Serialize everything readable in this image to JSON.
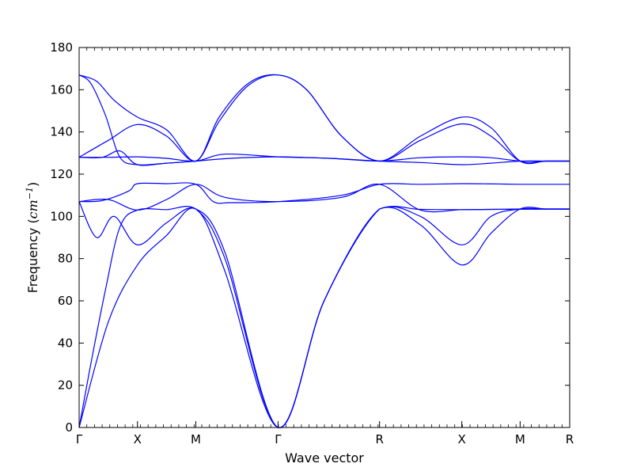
{
  "chart_data": {
    "type": "line",
    "title": "",
    "xlabel": "Wave vector",
    "ylabel": {
      "prefix": "Frequency (",
      "unit": "cm",
      "exponent": "−1",
      "suffix": ")"
    },
    "ylim": [
      0,
      180
    ],
    "yticks": [
      0,
      20,
      40,
      60,
      80,
      100,
      120,
      140,
      160,
      180
    ],
    "xlim": [
      0,
      8.41
    ],
    "grid": false,
    "legend": "none",
    "line_color": "#0000ff",
    "high_symmetry_points": [
      {
        "label": "Γ",
        "x": 0
      },
      {
        "label": "X",
        "x": 1
      },
      {
        "label": "M",
        "x": 2
      },
      {
        "label": "Γ",
        "x": 3.41
      },
      {
        "label": "R",
        "x": 5.15
      },
      {
        "label": "X",
        "x": 6.56
      },
      {
        "label": "M",
        "x": 7.56
      },
      {
        "label": "R",
        "x": 8.41
      }
    ],
    "series": [
      {
        "x": [
          0,
          0.5,
          1,
          1.5,
          2,
          2.5,
          3.41,
          4.2,
          5.15,
          5.85,
          6.56,
          7.06,
          7.56,
          8.0,
          8.41
        ],
        "y": [
          0,
          50,
          77,
          91,
          103.5,
          74,
          0,
          60,
          103.5,
          103.3,
          103.2,
          103.3,
          103.5,
          103.5,
          103.5
        ]
      },
      {
        "x": [
          0,
          0.2,
          0.45,
          0.7,
          1,
          1.5,
          2,
          2.5,
          3.41,
          4.2,
          5.15,
          5.85,
          6.56,
          7.06,
          7.56,
          8.0,
          8.41
        ],
        "y": [
          0,
          30,
          65,
          95,
          103,
          103.2,
          103.5,
          80,
          0,
          60,
          103.5,
          96,
          77,
          92,
          103.5,
          103.5,
          103.5
        ]
      },
      {
        "x": [
          0,
          0.3,
          0.6,
          1,
          1.5,
          2,
          2.5,
          3.41,
          4.2,
          5.15,
          5.85,
          6.56,
          7.06,
          7.56,
          8.0,
          8.41
        ],
        "y": [
          107,
          90,
          100,
          86.5,
          97,
          103.5,
          83,
          0,
          60,
          103.5,
          100,
          86.5,
          100,
          103.5,
          103.5,
          103.5
        ]
      },
      {
        "x": [
          0,
          0.4,
          0.85,
          1,
          1.5,
          2,
          2.3,
          2.6,
          3.41,
          4.5,
          5.15,
          5.85,
          6.56,
          7.06,
          7.56,
          8.0,
          8.41
        ],
        "y": [
          107,
          107.5,
          112,
          115.5,
          115.5,
          115.2,
          107,
          106.5,
          107,
          110,
          115.2,
          115.2,
          115.5,
          115.4,
          115.2,
          115.2,
          115.2
        ]
      },
      {
        "x": [
          0,
          0.5,
          1,
          1.5,
          2,
          2.5,
          3.41,
          4.5,
          5.15,
          5.85,
          6.56,
          7.06,
          7.56,
          8.0,
          8.41
        ],
        "y": [
          107,
          108,
          103,
          108,
          115.2,
          109,
          107,
          109,
          115.2,
          103,
          103.2,
          103.3,
          103.4,
          103.4,
          103.4
        ]
      },
      {
        "x": [
          0,
          0.4,
          0.7,
          1,
          1.5,
          2,
          2.6,
          3.41,
          4.3,
          5.15,
          5.85,
          6.56,
          7.06,
          7.56,
          8.0,
          8.41
        ],
        "y": [
          128,
          128,
          131,
          124.5,
          125.2,
          126.2,
          127.5,
          128.2,
          127.5,
          126.2,
          125.5,
          124.5,
          125.2,
          126.2,
          126.2,
          126.2
        ]
      },
      {
        "x": [
          0,
          0.5,
          1,
          1.5,
          2,
          2.5,
          3.41,
          4.3,
          5.15,
          5.85,
          6.56,
          7.06,
          7.56,
          8.0,
          8.41
        ],
        "y": [
          128,
          128,
          128.2,
          127.5,
          126.2,
          129.5,
          128.2,
          127.5,
          126.2,
          127.8,
          128.2,
          127.8,
          126.2,
          126.2,
          126.2
        ]
      },
      {
        "x": [
          0,
          0.5,
          1,
          1.5,
          2,
          2.4,
          2.9,
          3.41,
          3.9,
          4.5,
          5.15,
          5.85,
          6.56,
          7.06,
          7.56,
          8.0,
          8.41
        ],
        "y": [
          128,
          136,
          143.5,
          138,
          126.2,
          145,
          162,
          167,
          160,
          138,
          126.2,
          136,
          143.8,
          138,
          126.2,
          126.2,
          126.2
        ]
      },
      {
        "x": [
          0,
          0.3,
          0.6,
          1,
          1.5,
          2,
          2.4,
          2.9,
          3.41,
          3.9,
          4.5,
          5.15,
          5.85,
          6.56,
          7.06,
          7.56,
          8.0,
          8.41
        ],
        "y": [
          167,
          164,
          155,
          147,
          141,
          126.2,
          147,
          163,
          167,
          160,
          138,
          126.2,
          138,
          147,
          142,
          126.2,
          126.2,
          126.2
        ]
      },
      {
        "x": [
          0,
          0.2,
          0.45,
          0.7,
          1,
          1.4,
          2
        ],
        "y": [
          167,
          163,
          148,
          128,
          124.5,
          125,
          126.2
        ]
      }
    ]
  }
}
